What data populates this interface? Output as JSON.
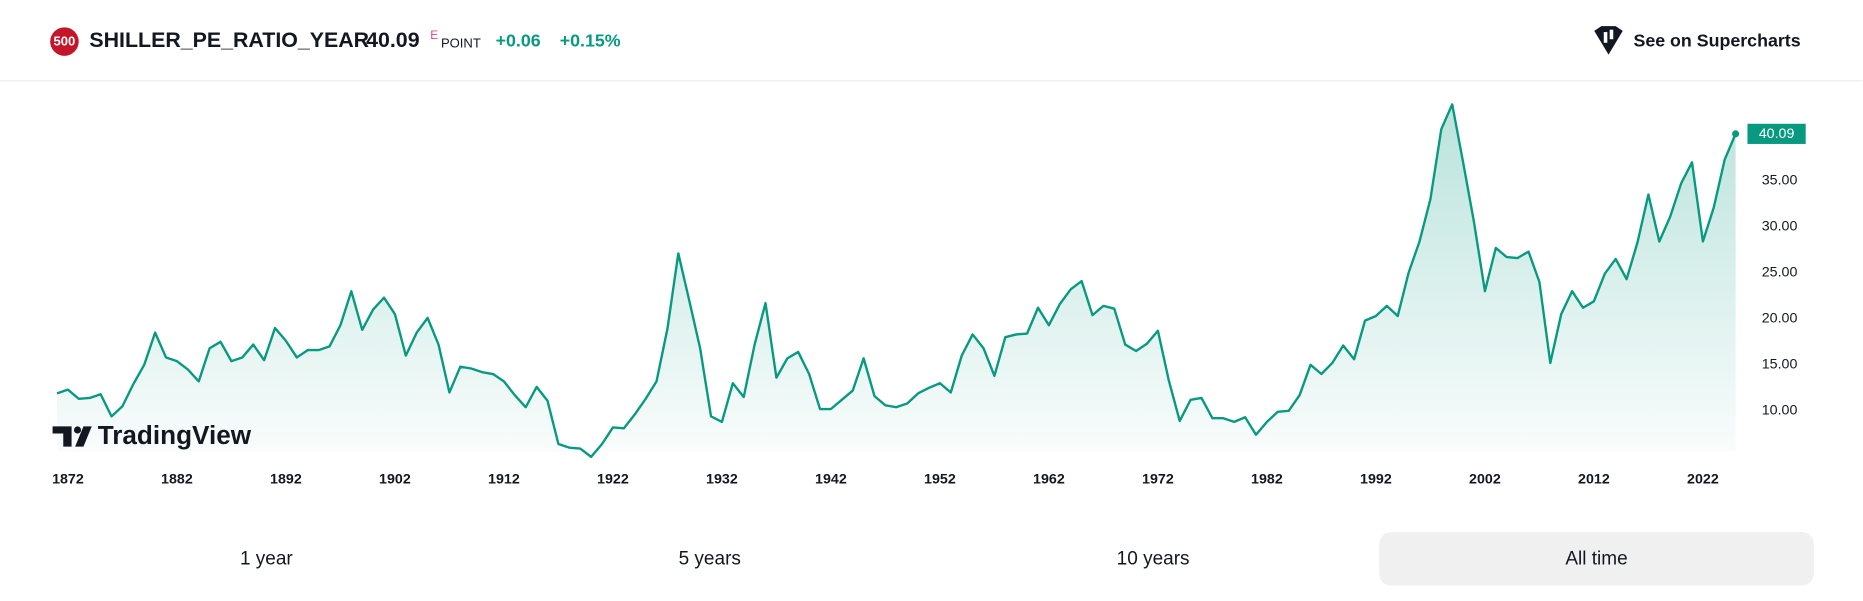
{
  "header": {
    "badge": "500",
    "symbol": "SHILLER_PE_RATIO_YEAR",
    "price": "40.09",
    "flag": "E",
    "unit": "POINT",
    "change": "+0.06",
    "change_percent": "+0.15%",
    "link": "See on Supercharts"
  },
  "watermark": "TradingView",
  "ranges": [
    "1 year",
    "5 years",
    "10 years",
    "All time"
  ],
  "chart_data": {
    "type": "area",
    "x": [
      1871,
      1872,
      1873,
      1874,
      1875,
      1876,
      1877,
      1878,
      1879,
      1880,
      1881,
      1882,
      1883,
      1884,
      1885,
      1886,
      1887,
      1888,
      1889,
      1890,
      1891,
      1892,
      1893,
      1894,
      1895,
      1896,
      1897,
      1898,
      1899,
      1900,
      1901,
      1902,
      1903,
      1904,
      1905,
      1906,
      1907,
      1908,
      1909,
      1910,
      1911,
      1912,
      1913,
      1914,
      1915,
      1916,
      1917,
      1918,
      1919,
      1920,
      1921,
      1922,
      1923,
      1924,
      1925,
      1926,
      1927,
      1928,
      1929,
      1930,
      1931,
      1932,
      1933,
      1934,
      1935,
      1936,
      1937,
      1938,
      1939,
      1940,
      1941,
      1942,
      1943,
      1944,
      1945,
      1946,
      1947,
      1948,
      1949,
      1950,
      1951,
      1952,
      1953,
      1954,
      1955,
      1956,
      1957,
      1958,
      1959,
      1960,
      1961,
      1962,
      1963,
      1964,
      1965,
      1966,
      1967,
      1968,
      1969,
      1970,
      1971,
      1972,
      1973,
      1974,
      1975,
      1976,
      1977,
      1978,
      1979,
      1980,
      1981,
      1982,
      1983,
      1984,
      1985,
      1986,
      1987,
      1988,
      1989,
      1990,
      1991,
      1992,
      1993,
      1994,
      1995,
      1996,
      1997,
      1998,
      1999,
      2000,
      2001,
      2002,
      2003,
      2004,
      2005,
      2006,
      2007,
      2008,
      2009,
      2010,
      2011,
      2012,
      2013,
      2014,
      2015,
      2016,
      2017,
      2018,
      2019,
      2020,
      2021,
      2022,
      2023,
      2024,
      2025
    ],
    "series": [
      {
        "name": "SHILLER_PE_RATIO_YEAR",
        "color": "#089981",
        "values": [
          11.9,
          12.3,
          11.3,
          11.4,
          11.8,
          9.4,
          10.5,
          12.9,
          15.0,
          18.5,
          15.8,
          15.4,
          14.5,
          13.2,
          16.8,
          17.5,
          15.4,
          15.8,
          17.2,
          15.5,
          19.0,
          17.6,
          15.8,
          16.6,
          16.6,
          17.0,
          19.3,
          23.0,
          18.8,
          21.0,
          22.3,
          20.5,
          16.0,
          18.5,
          20.1,
          17.2,
          12.0,
          14.8,
          14.6,
          14.2,
          14.0,
          13.2,
          11.7,
          10.4,
          12.6,
          11.1,
          6.4,
          6.0,
          5.9,
          5.0,
          6.4,
          8.2,
          8.1,
          9.6,
          11.3,
          13.2,
          18.9,
          27.1,
          22.0,
          16.8,
          9.4,
          8.8,
          13.0,
          11.5,
          17.2,
          21.7,
          13.6,
          15.7,
          16.4,
          14.0,
          10.2,
          10.2,
          11.2,
          12.2,
          15.7,
          11.6,
          10.6,
          10.4,
          10.8,
          11.9,
          12.5,
          13.0,
          12.0,
          16.0,
          18.3,
          16.8,
          13.8,
          18.0,
          18.3,
          18.4,
          21.2,
          19.3,
          21.6,
          23.2,
          24.1,
          20.4,
          21.4,
          21.1,
          17.2,
          16.5,
          17.3,
          18.7,
          13.3,
          8.9,
          11.2,
          11.4,
          9.2,
          9.2,
          8.8,
          9.3,
          7.4,
          8.8,
          9.9,
          10.0,
          11.7,
          15.0,
          14.0,
          15.2,
          17.1,
          15.6,
          19.8,
          20.3,
          21.4,
          20.3,
          25.0,
          28.4,
          33.0,
          40.6,
          43.3,
          37.0,
          30.5,
          23.0,
          27.7,
          26.7,
          26.6,
          27.3,
          24.0,
          15.2,
          20.5,
          23.0,
          21.2,
          21.9,
          24.9,
          26.5,
          24.3,
          28.3,
          33.5,
          28.4,
          31.1,
          34.7,
          37.0,
          28.4,
          32.1,
          37.3,
          40.09
        ]
      }
    ],
    "value_labels": [
      "40.09"
    ],
    "xlim": [
      1870.7,
      2025
    ],
    "xticks": [
      1872,
      1882,
      1892,
      1902,
      1912,
      1922,
      1932,
      1942,
      1952,
      1962,
      1972,
      1982,
      1992,
      2002,
      2012,
      2022
    ],
    "ylim": [
      5.6,
      45.6
    ],
    "yticks": [
      {
        "value": 10,
        "label": "10.00"
      },
      {
        "value": 15,
        "label": "15.00"
      },
      {
        "value": 20,
        "label": "20.00"
      },
      {
        "value": 25,
        "label": "25.00"
      },
      {
        "value": 30,
        "label": "30.00"
      },
      {
        "value": 35,
        "label": "35.00"
      }
    ]
  }
}
